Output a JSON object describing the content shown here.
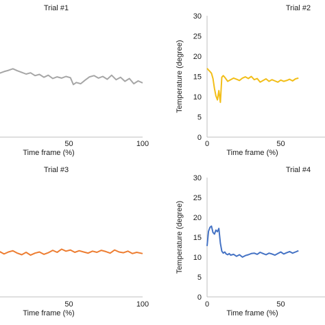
{
  "chart_data": [
    {
      "type": "line",
      "title": "Trial #1",
      "xlabel": "Time frame (%)",
      "ylabel": "",
      "xlim": [
        0,
        100
      ],
      "ylim": [
        0,
        30
      ],
      "x_ticks": [
        "50",
        "100"
      ],
      "y_ticks": [],
      "color": "#a6a6a6",
      "series": [
        {
          "x": [
            0,
            3,
            6,
            9,
            12,
            15,
            18,
            21,
            24,
            27,
            30,
            33,
            36,
            39,
            42,
            45,
            48,
            51,
            53,
            55,
            58,
            61,
            64,
            67,
            70,
            73,
            76,
            79,
            82,
            85,
            88,
            91,
            94,
            97,
            100
          ],
          "values": [
            15.5,
            15.8,
            16.2,
            16.5,
            16.9,
            16.4,
            16.0,
            15.6,
            15.9,
            15.2,
            15.5,
            14.8,
            15.3,
            14.5,
            14.9,
            14.6,
            15.0,
            14.7,
            13.0,
            13.5,
            13.2,
            14.1,
            14.9,
            15.2,
            14.6,
            15.0,
            14.3,
            15.3,
            14.2,
            14.8,
            13.8,
            14.5,
            13.2,
            13.9,
            13.4
          ]
        }
      ]
    },
    {
      "type": "line",
      "title": "Trial #2",
      "xlabel": "Time frame (%)",
      "ylabel": "Temperature (degree)",
      "xlim": [
        0,
        100
      ],
      "ylim": [
        0,
        30
      ],
      "x_ticks": [
        "0",
        "50"
      ],
      "y_ticks": [
        "0",
        "5",
        "10",
        "15",
        "20",
        "25",
        "30"
      ],
      "color": "#f2be18",
      "series": [
        {
          "x": [
            0,
            1,
            2,
            3,
            4,
            5,
            6,
            7,
            8,
            9,
            10,
            11,
            12,
            14,
            16,
            18,
            20,
            22,
            24,
            26,
            28,
            30,
            32,
            34,
            36,
            38,
            40,
            42,
            44,
            46,
            48,
            50,
            52,
            54,
            56,
            58,
            60,
            62
          ],
          "values": [
            17.0,
            16.6,
            16.2,
            15.8,
            14.5,
            12.0,
            10.2,
            9.2,
            11.5,
            8.6,
            14.8,
            15.2,
            14.8,
            13.8,
            14.2,
            14.6,
            14.3,
            14.0,
            14.6,
            14.9,
            14.5,
            15.0,
            14.2,
            14.5,
            13.6,
            14.0,
            14.4,
            13.8,
            14.2,
            13.9,
            13.6,
            14.1,
            13.8,
            14.0,
            14.3,
            13.9,
            14.4,
            14.6
          ]
        }
      ]
    },
    {
      "type": "line",
      "title": "Trial #3",
      "xlabel": "Time frame (%)",
      "ylabel": "",
      "xlim": [
        0,
        100
      ],
      "ylim": [
        0,
        30
      ],
      "x_ticks": [
        "50",
        "100"
      ],
      "y_ticks": [],
      "color": "#ed7d31",
      "series": [
        {
          "x": [
            0,
            3,
            6,
            9,
            12,
            15,
            18,
            21,
            24,
            27,
            30,
            33,
            36,
            39,
            42,
            45,
            48,
            51,
            54,
            57,
            60,
            63,
            66,
            69,
            72,
            75,
            78,
            81,
            84,
            87,
            90,
            93,
            96,
            100
          ],
          "values": [
            11.0,
            11.4,
            10.8,
            11.3,
            11.6,
            11.0,
            10.6,
            11.2,
            10.5,
            11.0,
            11.3,
            10.7,
            11.1,
            11.7,
            11.2,
            12.0,
            11.5,
            11.8,
            11.2,
            11.6,
            11.3,
            11.0,
            11.5,
            11.2,
            11.7,
            11.4,
            11.0,
            11.8,
            11.3,
            11.1,
            11.5,
            10.9,
            11.2,
            10.9
          ]
        }
      ]
    },
    {
      "type": "line",
      "title": "Trial #4",
      "xlabel": "Time frame (%)",
      "ylabel": "Temperature (degree)",
      "xlim": [
        0,
        100
      ],
      "ylim": [
        0,
        30
      ],
      "x_ticks": [
        "0",
        "50"
      ],
      "y_ticks": [
        "0",
        "5",
        "10",
        "15",
        "20",
        "25",
        "30"
      ],
      "color": "#4472c4",
      "series": [
        {
          "x": [
            0,
            1,
            2,
            3,
            4,
            5,
            6,
            7,
            8,
            9,
            10,
            11,
            12,
            13,
            14,
            15,
            16,
            18,
            20,
            22,
            24,
            26,
            28,
            30,
            32,
            34,
            36,
            38,
            40,
            42,
            44,
            46,
            48,
            50,
            52,
            54,
            56,
            58,
            60,
            62
          ],
          "values": [
            12.8,
            16.5,
            17.5,
            17.8,
            16.2,
            15.8,
            16.8,
            16.4,
            17.2,
            13.5,
            11.5,
            11.0,
            11.3,
            10.8,
            10.6,
            10.9,
            10.5,
            10.7,
            10.2,
            10.6,
            10.0,
            10.4,
            10.6,
            10.9,
            11.0,
            10.7,
            11.2,
            10.9,
            10.6,
            11.0,
            10.8,
            10.5,
            10.9,
            11.3,
            10.8,
            11.1,
            11.4,
            11.0,
            11.3,
            11.6
          ]
        }
      ]
    }
  ]
}
